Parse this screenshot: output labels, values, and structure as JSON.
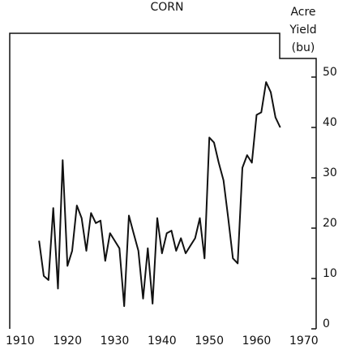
{
  "chart_data": {
    "type": "line",
    "title": "CORN",
    "y_axis_label": [
      "Acre",
      "Yield",
      "(bu)"
    ],
    "x": [
      1914,
      1915,
      1916,
      1917,
      1918,
      1919,
      1920,
      1921,
      1922,
      1923,
      1924,
      1925,
      1926,
      1927,
      1928,
      1929,
      1930,
      1931,
      1932,
      1933,
      1934,
      1935,
      1936,
      1937,
      1938,
      1939,
      1940,
      1941,
      1942,
      1943,
      1944,
      1945,
      1946,
      1947,
      1948,
      1949,
      1950,
      1951,
      1952,
      1953,
      1954,
      1955,
      1956,
      1957,
      1958,
      1959,
      1960,
      1961,
      1962,
      1963,
      1964,
      1965
    ],
    "series": [
      {
        "name": "Corn",
        "color": "#111111",
        "values": [
          17.5,
          10.5,
          9.7,
          24,
          8,
          33.5,
          12.5,
          15.5,
          24.5,
          22,
          15.5,
          23,
          21,
          21.5,
          13.5,
          19,
          17.5,
          16,
          4.5,
          22.5,
          19,
          15.5,
          6,
          16,
          5,
          22,
          15,
          19,
          19.5,
          15.5,
          18,
          15,
          16.5,
          18,
          22,
          14,
          38,
          37,
          33,
          29.5,
          22,
          14,
          13,
          32,
          34.5,
          33,
          42.5,
          43,
          49,
          47,
          42,
          40
        ]
      }
    ],
    "xlim": [
      1907.8,
      1972.6
    ],
    "xticks": [
      1900,
      1910,
      1920,
      1930,
      1940,
      1950,
      1960,
      1970
    ],
    "ylim": [
      0,
      58.7
    ],
    "yticks": [
      0,
      10,
      20,
      30,
      40,
      50
    ]
  }
}
